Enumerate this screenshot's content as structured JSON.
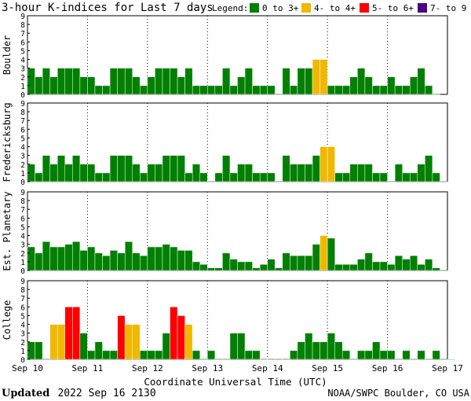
{
  "header": {
    "title": "3-hour K-indices for Last 7 days",
    "legend_label": "Legend:",
    "legend": [
      {
        "label": "0 to 3+",
        "color": "#008000"
      },
      {
        "label": "4- to 4+",
        "color": "#f0b800"
      },
      {
        "label": "5- to 6+",
        "color": "#ff0000"
      },
      {
        "label": "7- to 9",
        "color": "#4b0082"
      }
    ]
  },
  "footer": {
    "updated_label": "Updated",
    "updated_time": "2022 Sep 16 2130",
    "source": "NOAA/SWPC Boulder, CO USA"
  },
  "chart_data": {
    "type": "bar",
    "xlabel": "Coordinate Universal Time (UTC)",
    "ylim": [
      0,
      9
    ],
    "yticks": [
      0,
      1,
      2,
      3,
      4,
      5,
      6,
      7,
      8,
      9
    ],
    "grid": "vertical dotted lines at day boundaries",
    "day_labels": [
      "Sep 10",
      "Sep 11",
      "Sep 12",
      "Sep 13",
      "Sep 14",
      "Sep 15",
      "Sep 16",
      "Sep 17"
    ],
    "color_scale": [
      {
        "max": 3.99,
        "color": "#008000"
      },
      {
        "max": 4.99,
        "color": "#f0b800"
      },
      {
        "max": 6.99,
        "color": "#ff0000"
      },
      {
        "max": 9,
        "color": "#4b0082"
      }
    ],
    "panels": [
      {
        "name": "Boulder",
        "values": [
          3,
          2,
          3,
          2,
          3,
          3,
          3,
          2,
          2,
          1,
          1,
          3,
          3,
          3,
          2,
          1,
          2,
          3,
          3,
          3,
          2,
          3,
          1,
          1,
          1,
          1,
          3,
          1,
          2,
          3,
          1,
          1,
          1,
          0,
          3,
          1,
          3,
          3,
          4,
          4,
          1,
          1,
          1,
          2,
          3,
          2,
          1,
          1,
          2,
          1,
          1,
          2,
          3,
          1,
          0
        ]
      },
      {
        "name": "Fredericksburg",
        "values": [
          2,
          1,
          3,
          2,
          3,
          2,
          3,
          2,
          2,
          1,
          1,
          3,
          3,
          3,
          2,
          1,
          2,
          2,
          3,
          3,
          3,
          1,
          2,
          1,
          0,
          1,
          3,
          1,
          2,
          2,
          1,
          1,
          1,
          0,
          3,
          2,
          2,
          2,
          3,
          4,
          4,
          1,
          1,
          2,
          2,
          2,
          1,
          1,
          0,
          2,
          1,
          1,
          2,
          3,
          1,
          0
        ]
      },
      {
        "name": "Est. Planetary",
        "values": [
          2.7,
          2,
          3.3,
          2.7,
          2.7,
          3,
          3.3,
          2.3,
          2.7,
          2,
          1.7,
          2.3,
          2,
          3.3,
          2,
          1.7,
          2.7,
          2.7,
          3,
          2.7,
          2.3,
          2.3,
          1,
          0.7,
          0.3,
          0.3,
          2,
          1.3,
          1,
          1,
          0.3,
          0.7,
          1.3,
          0.3,
          2,
          1.7,
          1.7,
          1.7,
          3,
          4,
          3.7,
          0.7,
          0.7,
          0.7,
          1.3,
          2,
          1,
          1,
          0.7,
          1.7,
          1.3,
          1.7,
          0.7,
          1.3,
          0.3,
          0
        ]
      },
      {
        "name": "College",
        "values": [
          2,
          2,
          0,
          4,
          4,
          6,
          6,
          3,
          1,
          2,
          1,
          1,
          5,
          4,
          4,
          1,
          1,
          1,
          3,
          6,
          5,
          4,
          1,
          0,
          1,
          0,
          0,
          3,
          3,
          1,
          1,
          0,
          0,
          0,
          0,
          1,
          2,
          3,
          2,
          2,
          3,
          2,
          1,
          0,
          1,
          1,
          2,
          1,
          1,
          0,
          1,
          0,
          1,
          0,
          1,
          0,
          0
        ]
      }
    ]
  }
}
